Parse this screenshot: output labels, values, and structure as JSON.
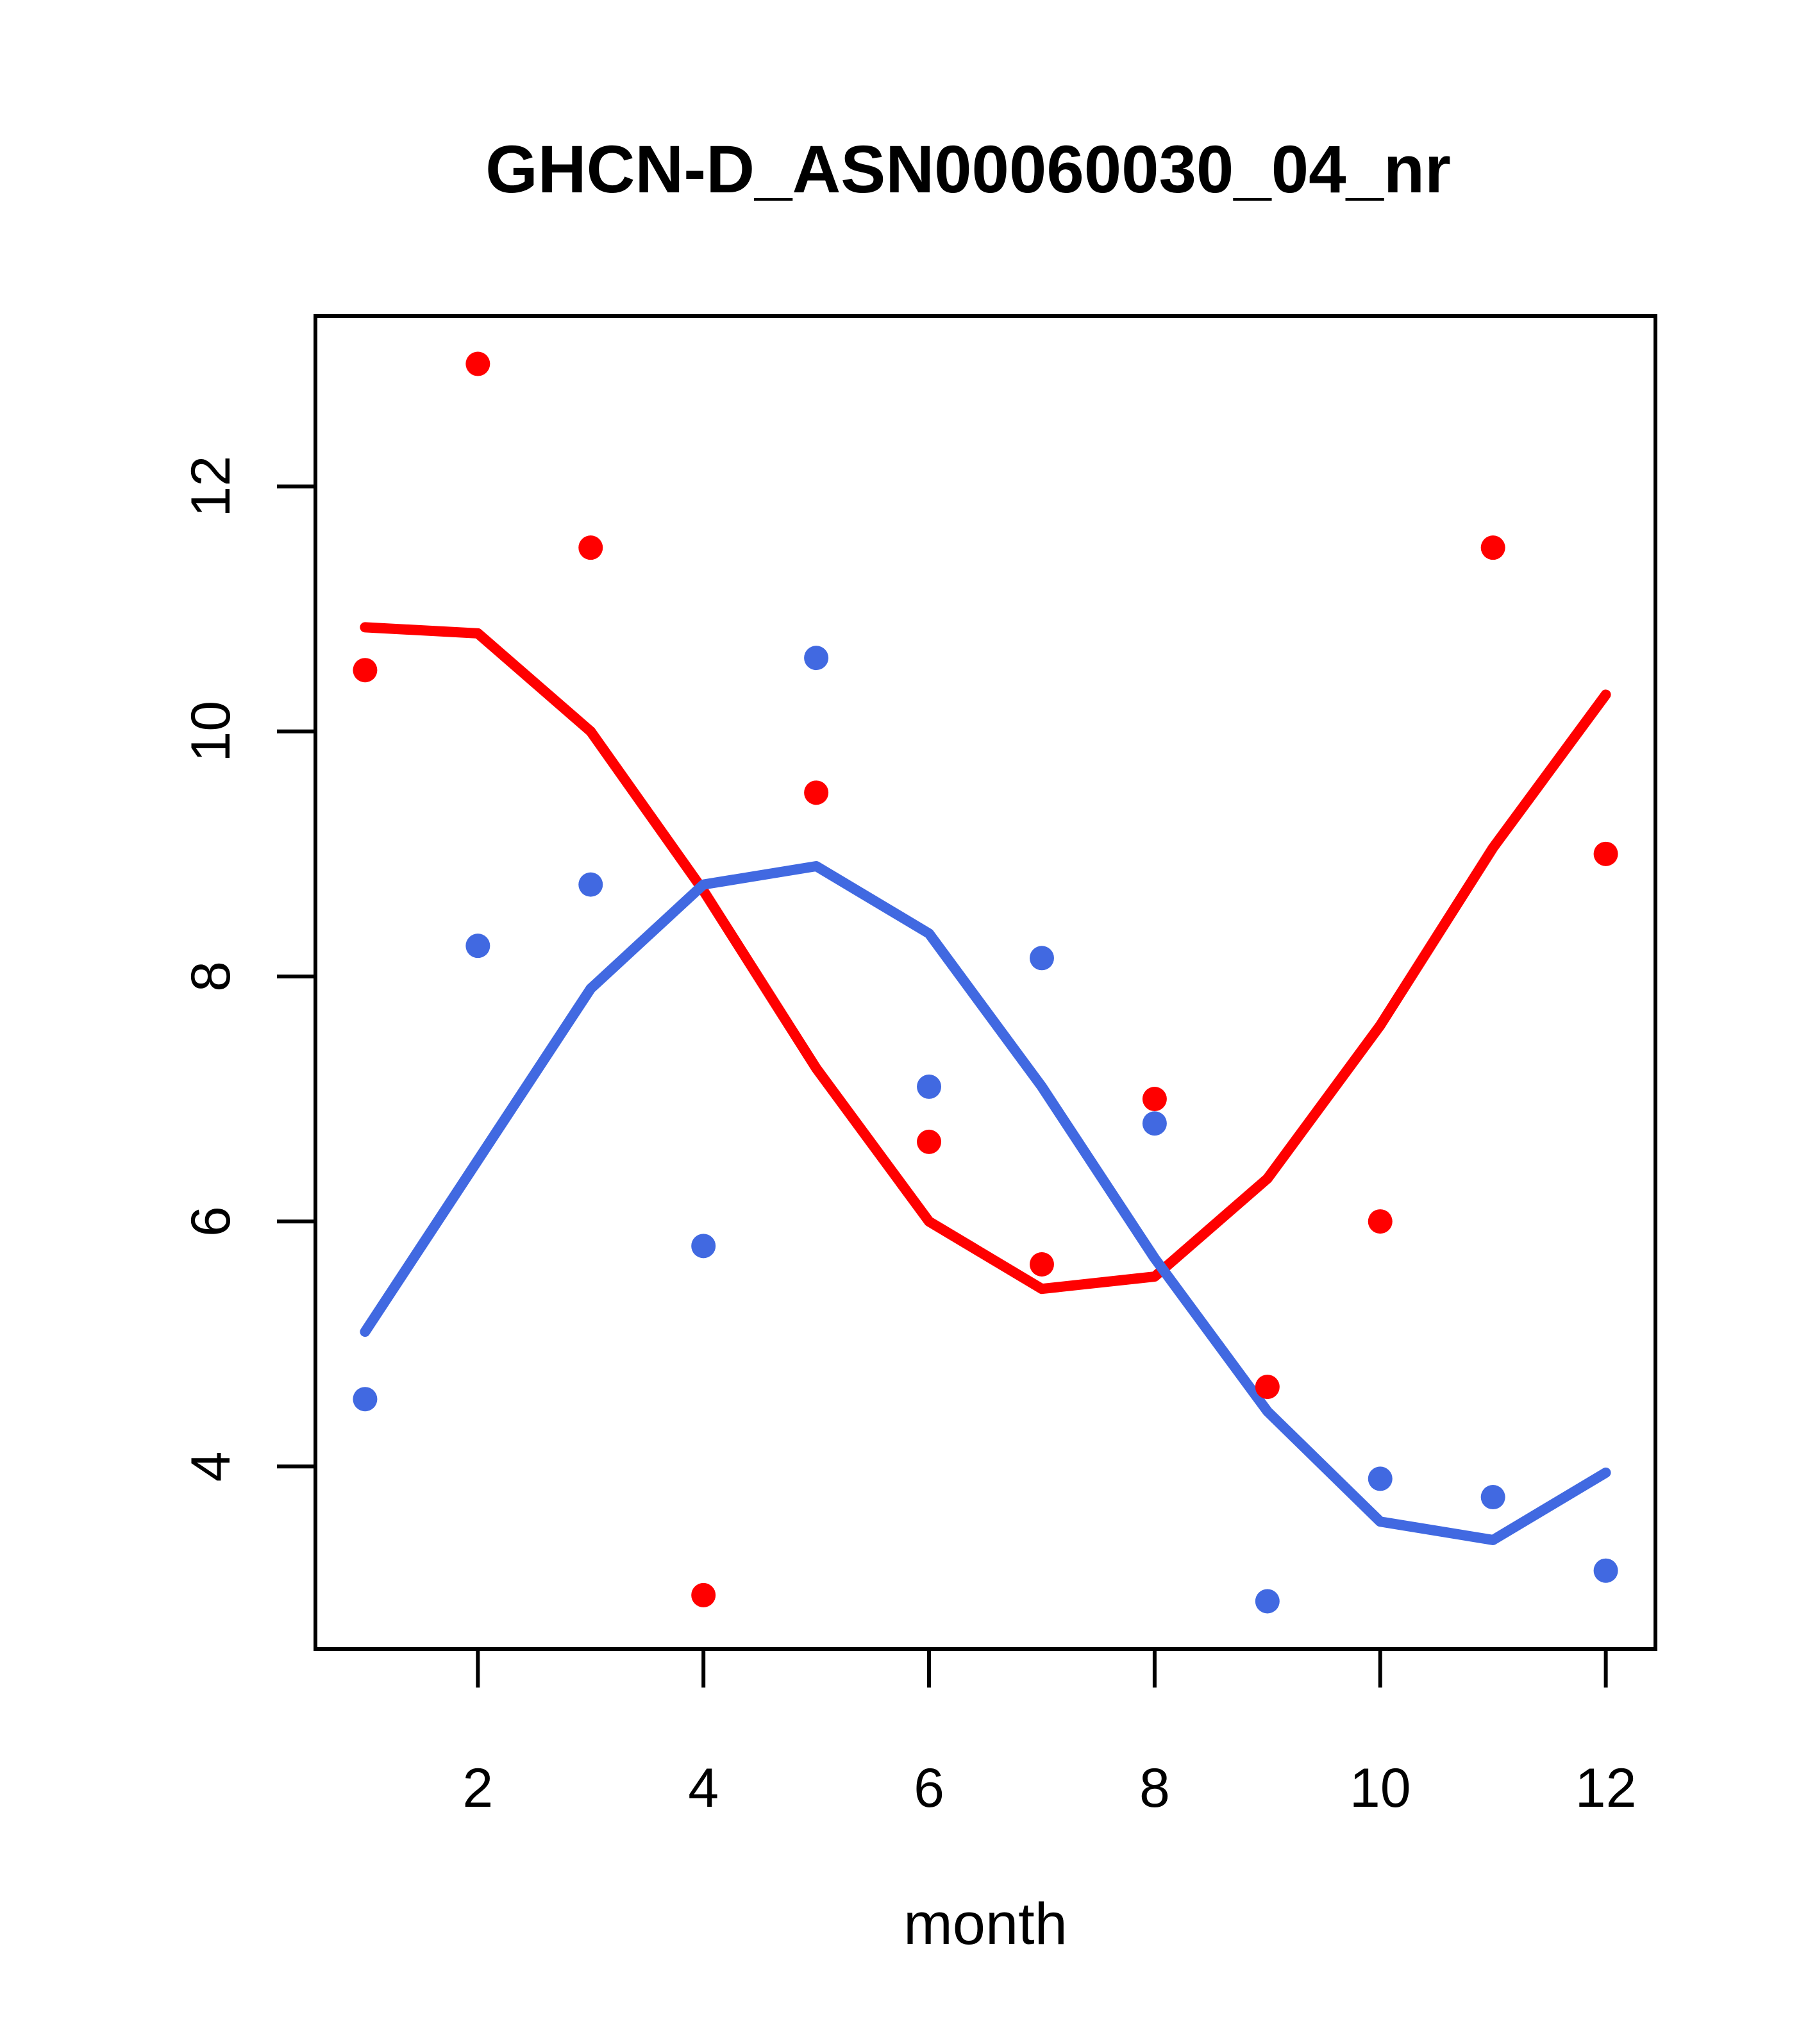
{
  "chart_data": {
    "type": "scatter",
    "title": "GHCN-D_ASN00060030_04_nr",
    "xlabel": "month",
    "ylabel": "",
    "x": [
      1,
      2,
      3,
      4,
      5,
      6,
      7,
      8,
      9,
      10,
      11,
      12
    ],
    "xlim": [
      0.56,
      12.44
    ],
    "ylim": [
      2.51,
      13.39
    ],
    "x_ticks": [
      2,
      4,
      6,
      8,
      10,
      12
    ],
    "y_ticks": [
      4,
      6,
      8,
      10,
      12
    ],
    "grid": false,
    "legend_position": "none",
    "colors": {
      "red": "#FF0000",
      "blue": "#4169E1",
      "axis": "#000000",
      "background": "#FFFFFF"
    },
    "series": [
      {
        "name": "red points",
        "type": "scatter",
        "color_key": "red",
        "values": [
          10.5,
          13.0,
          11.5,
          2.95,
          9.5,
          6.65,
          5.65,
          7.0,
          4.65,
          6.0,
          11.5,
          9.0
        ]
      },
      {
        "name": "blue points",
        "type": "scatter",
        "color_key": "blue",
        "values": [
          4.55,
          8.25,
          8.75,
          5.8,
          10.6,
          7.1,
          8.15,
          6.8,
          2.9,
          3.9,
          3.75,
          3.15
        ]
      },
      {
        "name": "red loess line",
        "type": "line",
        "color_key": "red",
        "values": [
          10.85,
          10.8,
          10.0,
          8.7,
          7.25,
          6.0,
          5.45,
          5.55,
          6.35,
          7.6,
          9.05,
          10.3
        ]
      },
      {
        "name": "blue loess line",
        "type": "line",
        "color_key": "blue",
        "values": [
          5.1,
          6.5,
          7.9,
          8.75,
          8.9,
          8.35,
          7.1,
          5.7,
          4.45,
          3.55,
          3.4,
          3.95
        ]
      }
    ]
  }
}
